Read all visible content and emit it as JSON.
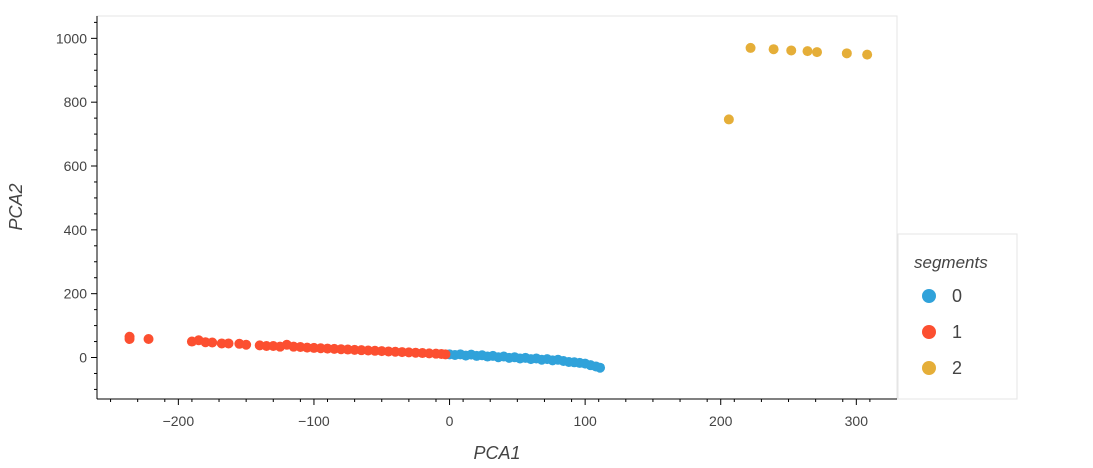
{
  "chart_data": {
    "type": "scatter",
    "title": "",
    "xlabel": "PCA1",
    "ylabel": "PCA2",
    "xlim": [
      -260,
      330
    ],
    "ylim": [
      -130,
      1070
    ],
    "x_ticks": [
      -200,
      -100,
      0,
      100,
      200,
      300
    ],
    "x_tick_labels": [
      "−200",
      "−100",
      "0",
      "100",
      "200",
      "300"
    ],
    "y_ticks": [
      0,
      200,
      400,
      600,
      800,
      1000
    ],
    "y_tick_labels": [
      "0",
      "200",
      "400",
      "600",
      "800",
      "1000"
    ],
    "grid": false,
    "legend": {
      "title": "segments",
      "position": "right"
    },
    "series": [
      {
        "name": "0",
        "color": "#30a2da",
        "points": [
          [
            0,
            10
          ],
          [
            4,
            8
          ],
          [
            8,
            10
          ],
          [
            12,
            6
          ],
          [
            16,
            9
          ],
          [
            20,
            5
          ],
          [
            24,
            7
          ],
          [
            28,
            3
          ],
          [
            32,
            5
          ],
          [
            36,
            1
          ],
          [
            40,
            3
          ],
          [
            44,
            -1
          ],
          [
            48,
            1
          ],
          [
            52,
            -3
          ],
          [
            56,
            -1
          ],
          [
            60,
            -5
          ],
          [
            64,
            -3
          ],
          [
            68,
            -7
          ],
          [
            72,
            -5
          ],
          [
            76,
            -9
          ],
          [
            80,
            -7
          ],
          [
            84,
            -11
          ],
          [
            88,
            -14
          ],
          [
            92,
            -15
          ],
          [
            96,
            -17
          ],
          [
            100,
            -19
          ],
          [
            104,
            -24
          ],
          [
            108,
            -28
          ],
          [
            111,
            -32
          ]
        ]
      },
      {
        "name": "1",
        "color": "#fc4f30",
        "points": [
          [
            -236,
            65
          ],
          [
            -236,
            58
          ],
          [
            -222,
            58
          ],
          [
            -190,
            50
          ],
          [
            -185,
            54
          ],
          [
            -180,
            48
          ],
          [
            -175,
            47
          ],
          [
            -168,
            44
          ],
          [
            -163,
            44
          ],
          [
            -155,
            43
          ],
          [
            -150,
            40
          ],
          [
            -140,
            38
          ],
          [
            -135,
            36
          ],
          [
            -130,
            36
          ],
          [
            -125,
            34
          ],
          [
            -120,
            40
          ],
          [
            -115,
            34
          ],
          [
            -110,
            33
          ],
          [
            -105,
            31
          ],
          [
            -100,
            30
          ],
          [
            -95,
            29
          ],
          [
            -90,
            28
          ],
          [
            -85,
            27
          ],
          [
            -80,
            26
          ],
          [
            -75,
            25
          ],
          [
            -70,
            24
          ],
          [
            -65,
            23
          ],
          [
            -60,
            22
          ],
          [
            -55,
            21
          ],
          [
            -50,
            20
          ],
          [
            -45,
            19
          ],
          [
            -40,
            18
          ],
          [
            -35,
            17
          ],
          [
            -30,
            16
          ],
          [
            -25,
            15
          ],
          [
            -20,
            14
          ],
          [
            -15,
            13
          ],
          [
            -10,
            12
          ],
          [
            -6,
            11
          ],
          [
            -3,
            10
          ]
        ]
      },
      {
        "name": "2",
        "color": "#e5ae38",
        "points": [
          [
            206,
            746
          ],
          [
            222,
            970
          ],
          [
            239,
            966
          ],
          [
            252,
            962
          ],
          [
            264,
            960
          ],
          [
            271,
            957
          ],
          [
            293,
            953
          ],
          [
            308,
            949
          ]
        ]
      }
    ]
  }
}
